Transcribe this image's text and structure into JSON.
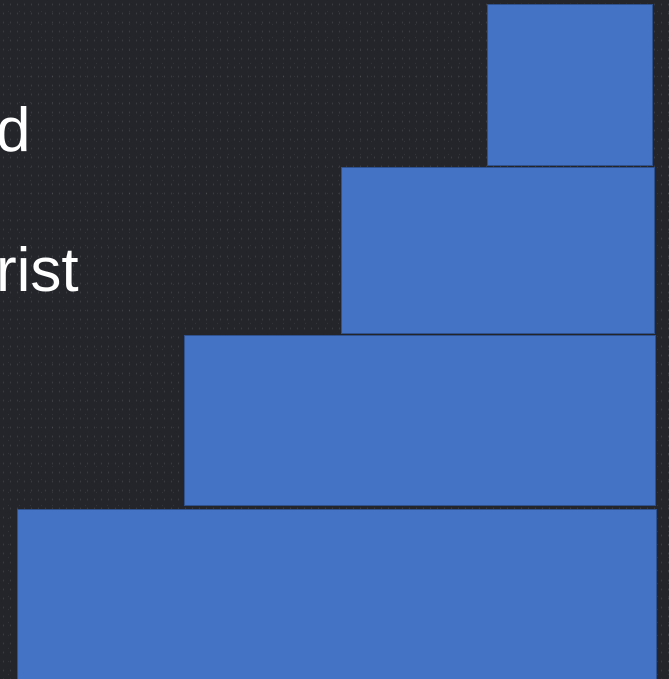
{
  "text_lines": [
    "d",
    "rist"
  ],
  "staircase": {
    "fill_color": "#4472c4",
    "border_color": "#2f528f",
    "background_color": "#23252a"
  }
}
